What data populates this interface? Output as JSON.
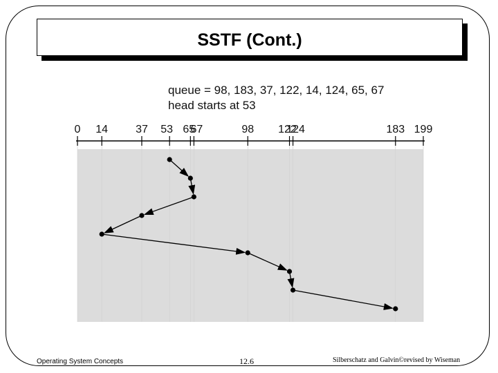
{
  "slide": {
    "title": "SSTF (Cont.)",
    "queue_text": "queue = 98, 183, 37, 122, 14, 124, 65, 67",
    "head_text": "head starts at 53"
  },
  "chart_data": {
    "type": "line",
    "title": "",
    "xlabel": "",
    "ylabel": "",
    "xlim": [
      0,
      199
    ],
    "ticks": [
      0,
      14,
      37,
      53,
      65,
      67,
      98,
      122,
      124,
      183,
      199
    ],
    "x": [
      53,
      65,
      67,
      37,
      14,
      98,
      122,
      124,
      183
    ],
    "y": [
      1,
      2,
      3,
      4,
      5,
      6,
      7,
      8,
      9
    ],
    "grid": false,
    "legend": "none",
    "colors": {
      "plot_background": "#dcdcdc",
      "line": "#000000",
      "tick_label": "#111111"
    }
  },
  "footer": {
    "left": "Operating System Concepts",
    "center": "12.6",
    "right": "Silberschatz and Galvin©revised by Wiseman"
  }
}
